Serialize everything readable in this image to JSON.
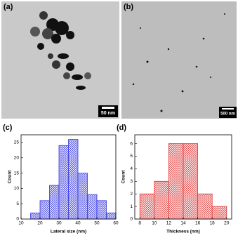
{
  "panels": {
    "a": {
      "label": "(a)",
      "scale": "50 nm"
    },
    "b": {
      "label": "(b)",
      "scale": "500 nm"
    }
  },
  "chart_data": [
    {
      "type": "histogram",
      "label": "(c)",
      "x_label": "Lateral size (nm)",
      "y_label": "Count",
      "color": "#3a3ae0",
      "bins": [
        15,
        20,
        25,
        30,
        35,
        40,
        45,
        50,
        55,
        60
      ],
      "counts": [
        2,
        6,
        11,
        24,
        26,
        15,
        8,
        6,
        2
      ],
      "xlim": [
        10,
        60
      ],
      "xticks": [
        10,
        20,
        30,
        40,
        50,
        60
      ],
      "ylim": [
        0,
        27.5
      ],
      "yticks": [
        0,
        5,
        10,
        15,
        20,
        25
      ]
    },
    {
      "type": "histogram",
      "label": "(d)",
      "x_label": "Thickness (nm)",
      "y_label": "Count",
      "color": "#e03a3a",
      "bins": [
        8,
        10,
        12,
        14,
        16,
        18,
        20
      ],
      "counts": [
        2,
        3,
        6,
        6,
        2,
        1
      ],
      "xlim": [
        7.3,
        20.7
      ],
      "xticks": [
        8,
        10,
        12,
        14,
        16,
        18,
        20
      ],
      "ylim": [
        0,
        6.7
      ],
      "yticks": [
        0,
        1,
        2,
        3,
        4,
        5,
        6
      ]
    }
  ]
}
